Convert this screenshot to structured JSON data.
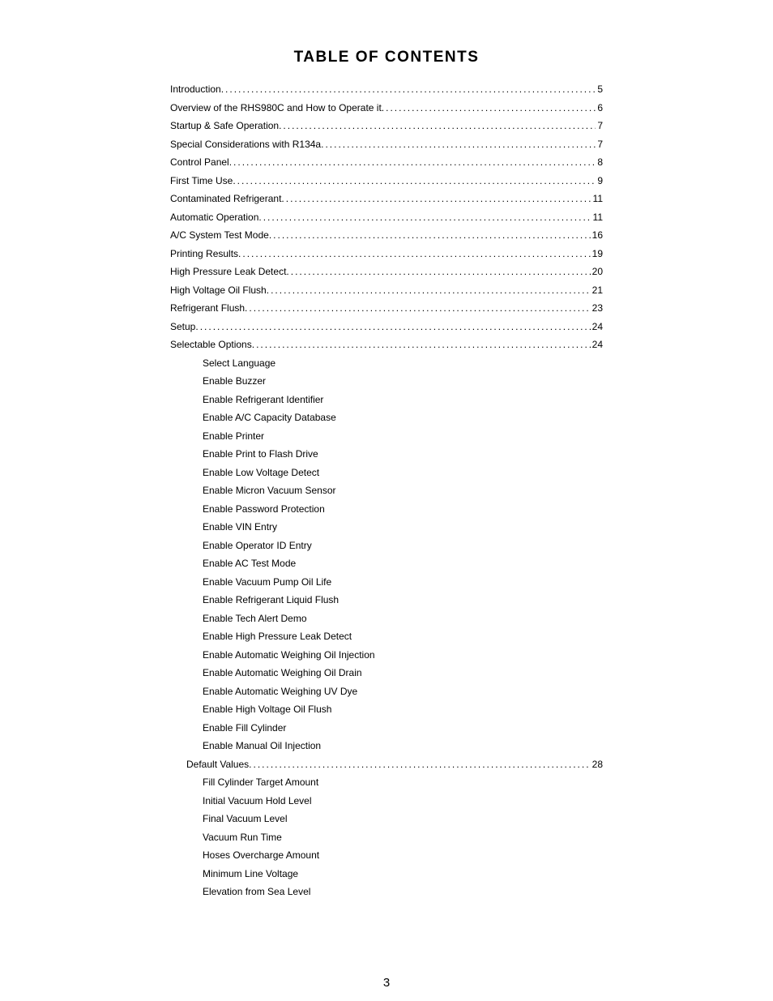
{
  "title": "TABLE OF CONTENTS",
  "page_number": "3",
  "toc": [
    {
      "label": "Introduction",
      "page": "5",
      "indent": 0
    },
    {
      "label": "Overview of the RHS980C and How to Operate it",
      "page": "6",
      "indent": 0
    },
    {
      "label": "Startup & Safe Operation",
      "page": "7",
      "indent": 0
    },
    {
      "label": "Special Considerations with R134a",
      "page": "7",
      "indent": 0
    },
    {
      "label": "Control Panel",
      "page": "8",
      "indent": 0
    },
    {
      "label": "First Time Use",
      "page": "9",
      "indent": 0
    },
    {
      "label": "Contaminated Refrigerant",
      "page": "11",
      "indent": 0
    },
    {
      "label": "Automatic Operation",
      "page": "11",
      "indent": 0
    },
    {
      "label": "A/C System Test Mode",
      "page": "16",
      "indent": 0
    },
    {
      "label": "Printing Results",
      "page": "19",
      "indent": 0
    },
    {
      "label": "High Pressure Leak Detect",
      "page": "20",
      "indent": 0
    },
    {
      "label": "High Voltage Oil Flush",
      "page": "21",
      "indent": 0
    },
    {
      "label": "Refrigerant Flush",
      "page": "23",
      "indent": 0
    },
    {
      "label": "Setup",
      "page": "24",
      "indent": 0
    },
    {
      "label": "Selectable Options",
      "page": "24",
      "indent": 0
    }
  ],
  "selectable_options": [
    "Select Language",
    "Enable Buzzer",
    "Enable Refrigerant Identifier",
    "Enable A/C Capacity Database",
    "Enable Printer",
    "Enable Print to Flash Drive",
    "Enable Low Voltage Detect",
    "Enable Micron Vacuum Sensor",
    "Enable Password Protection",
    "Enable VIN Entry",
    "Enable Operator ID Entry",
    "Enable AC Test Mode",
    "Enable Vacuum Pump Oil Life",
    "Enable Refrigerant Liquid Flush",
    "Enable Tech Alert Demo",
    "Enable High Pressure Leak Detect",
    "Enable Automatic Weighing Oil Injection",
    "Enable Automatic Weighing Oil Drain",
    "Enable Automatic Weighing UV Dye",
    "Enable High Voltage Oil Flush",
    "Enable Fill Cylinder",
    "Enable Manual Oil Injection"
  ],
  "default_values_entry": {
    "label": "Default Values",
    "page": "28",
    "indent": 1
  },
  "default_values": [
    "Fill Cylinder Target Amount",
    "Initial Vacuum Hold Level",
    "Final Vacuum Level",
    "Vacuum Run Time",
    "Hoses Overcharge Amount",
    "Minimum Line Voltage",
    "Elevation from Sea Level"
  ]
}
